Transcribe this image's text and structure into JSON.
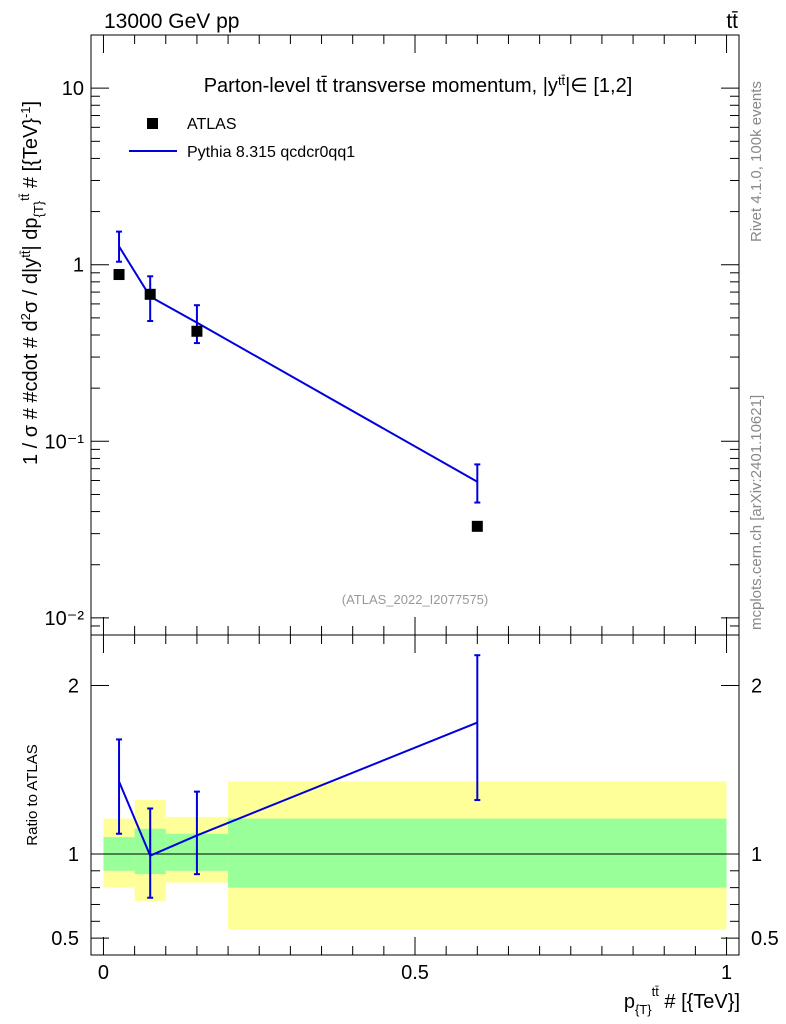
{
  "header": {
    "left": "13000 GeV pp",
    "right": "tt̄"
  },
  "side_labels": {
    "rivet": "Rivet 4.1.0,  100k events",
    "source": "mcplots.cern.ch [arXiv:2401.10621]"
  },
  "chart_data": [
    {
      "type": "line",
      "title": "Parton-level tt̄ transverse momentum, |y^{tt̄}| ∈ [1,2]",
      "watermark": "(ATLAS_2022_I2077575)",
      "ylabel": "1 / σ # #cdot # d²σ / d|y^{tt̄}| dp_{T}^{tt̄} # [{TeV}⁻¹]",
      "yscale": "log",
      "ylim": [
        0.008,
        20
      ],
      "xlim": [
        -0.02,
        1.02
      ],
      "y_ticks": [
        {
          "value": 0.01,
          "label": "10⁻²"
        },
        {
          "value": 0.1,
          "label": "10⁻¹"
        },
        {
          "value": 1,
          "label": "1"
        },
        {
          "value": 10,
          "label": "10"
        }
      ],
      "legend": {
        "position": "top-left",
        "entries": [
          "ATLAS",
          "Pythia 8.315 qcdcr0qq1"
        ]
      },
      "series": [
        {
          "name": "ATLAS",
          "style": "markers",
          "x": [
            0.025,
            0.075,
            0.15,
            0.6
          ],
          "y": [
            0.88,
            0.68,
            0.42,
            0.033
          ]
        },
        {
          "name": "Pythia 8.315 qcdcr0qq1",
          "style": "line",
          "color": "#0000dd",
          "x": [
            0.025,
            0.075,
            0.15,
            0.6
          ],
          "y": [
            1.27,
            0.66,
            0.47,
            0.059
          ],
          "err_low": [
            1.04,
            0.48,
            0.36,
            0.045
          ],
          "err_high": [
            1.54,
            0.86,
            0.59,
            0.074
          ]
        }
      ]
    },
    {
      "type": "line",
      "ylabel": "Ratio to ATLAS",
      "xlabel": "p_{T}^{tt̄} # [{TeV}]",
      "ylim": [
        0.4,
        2.3
      ],
      "xlim": [
        -0.02,
        1.02
      ],
      "y_ticks": [
        {
          "value": 0.5,
          "label": "0.5"
        },
        {
          "value": 1,
          "label": "1"
        },
        {
          "value": 2,
          "label": "2"
        }
      ],
      "x_ticks": [
        {
          "value": 0,
          "label": "0"
        },
        {
          "value": 0.5,
          "label": "0.5"
        },
        {
          "value": 1,
          "label": "1"
        }
      ],
      "bands": {
        "bins": [
          [
            0.0,
            0.05
          ],
          [
            0.05,
            0.1
          ],
          [
            0.1,
            0.2
          ],
          [
            0.2,
            1.0
          ]
        ],
        "inner_color": "#99ff99",
        "outer_color": "#ffff99",
        "inner_low": [
          0.9,
          0.88,
          0.9,
          0.8
        ],
        "inner_high": [
          1.1,
          1.15,
          1.12,
          1.21
        ],
        "outer_low": [
          0.8,
          0.72,
          0.83,
          0.55
        ],
        "outer_high": [
          1.21,
          1.32,
          1.22,
          1.43
        ]
      },
      "series": [
        {
          "name": "Pythia 8.315 qcdcr0qq1",
          "color": "#0000dd",
          "x": [
            0.025,
            0.075,
            0.15,
            0.6
          ],
          "y": [
            1.43,
            0.99,
            1.11,
            1.78
          ],
          "err_low": [
            1.12,
            0.74,
            0.88,
            1.32
          ],
          "err_high": [
            1.68,
            1.27,
            1.37,
            2.18
          ]
        }
      ]
    }
  ]
}
